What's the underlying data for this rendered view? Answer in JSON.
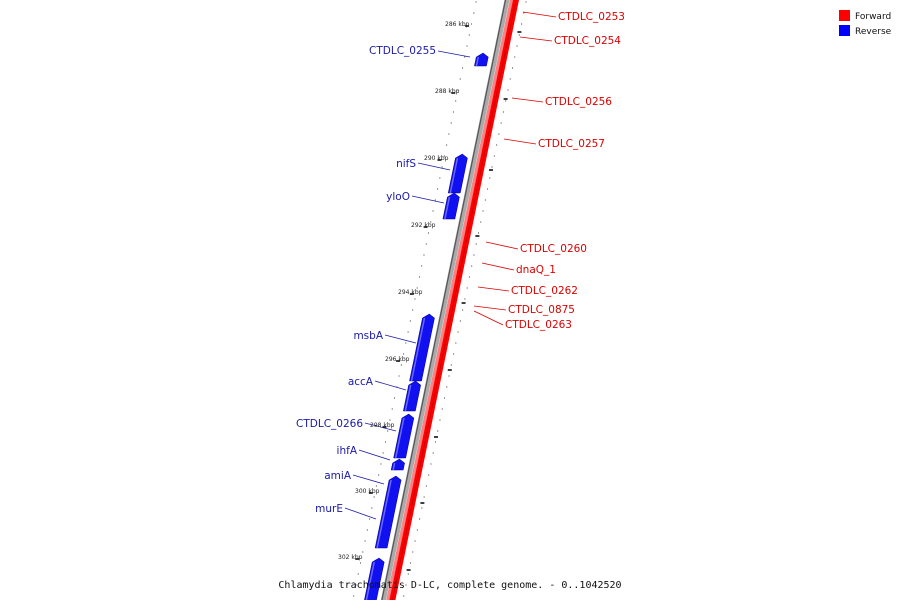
{
  "legend": {
    "forward_label": "Forward",
    "reverse_label": "Reverse",
    "forward_color": "#ff0000",
    "reverse_color": "#0000ff"
  },
  "caption": "Chlamydia trachomatis D-LC, complete genome. - 0..1042520",
  "colors": {
    "forward": "#ff0000",
    "reverse": "#1010f0",
    "forward_label": "#dd0000",
    "reverse_label": "#1a1aaa",
    "backbone": "#888888"
  },
  "map": {
    "scale_labels": [
      "286 kbp",
      "288 kbp",
      "290 kbp",
      "292 kbp",
      "294 kbp",
      "296 kbp",
      "298 kbp",
      "300 kbp",
      "302 kbp"
    ],
    "forward_genes": [
      "CTDLC_0253",
      "CTDLC_0254",
      "CTDLC_0256",
      "CTDLC_0257",
      "CTDLC_0260",
      "dnaQ_1",
      "CTDLC_0262",
      "CTDLC_0875",
      "CTDLC_0263"
    ],
    "reverse_genes": [
      "CTDLC_0255",
      "nifS",
      "yloO",
      "msbA",
      "accA",
      "CTDLC_0266",
      "ihfA",
      "amiA",
      "murE"
    ]
  }
}
